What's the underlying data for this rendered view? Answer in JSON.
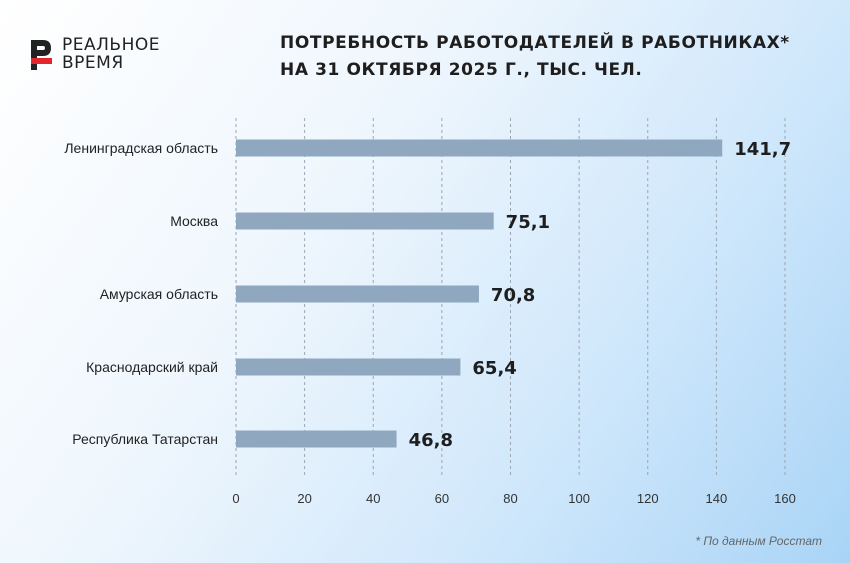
{
  "logo": {
    "line1": "РЕАЛЬНОЕ",
    "line2": "ВРЕМЯ",
    "colors": {
      "primary": "#222222",
      "accent": "#e3262c"
    }
  },
  "chart_data": {
    "type": "bar",
    "orientation": "horizontal",
    "title": [
      "ПОТРЕБНОСТЬ РАБОТОДАТЕЛЕЙ В РАБОТНИКАХ*",
      "НА 31 ОКТЯБРЯ 2025 Г., ТЫС. ЧЕЛ."
    ],
    "categories": [
      "Ленинградская область",
      "Москва",
      "Амурская область",
      "Краснодарский край",
      "Республика Татарстан"
    ],
    "values": [
      141.7,
      75.1,
      70.8,
      65.4,
      46.8
    ],
    "value_labels": [
      "141,7",
      "75,1",
      "70,8",
      "65,4",
      "46,8"
    ],
    "xlim": [
      0,
      160
    ],
    "xticks": [
      0,
      20,
      40,
      60,
      80,
      100,
      120,
      140,
      160
    ],
    "grid": "vertical dashed",
    "bar_color": "#8fa8bf"
  },
  "footnote": "* По данным Росстат"
}
